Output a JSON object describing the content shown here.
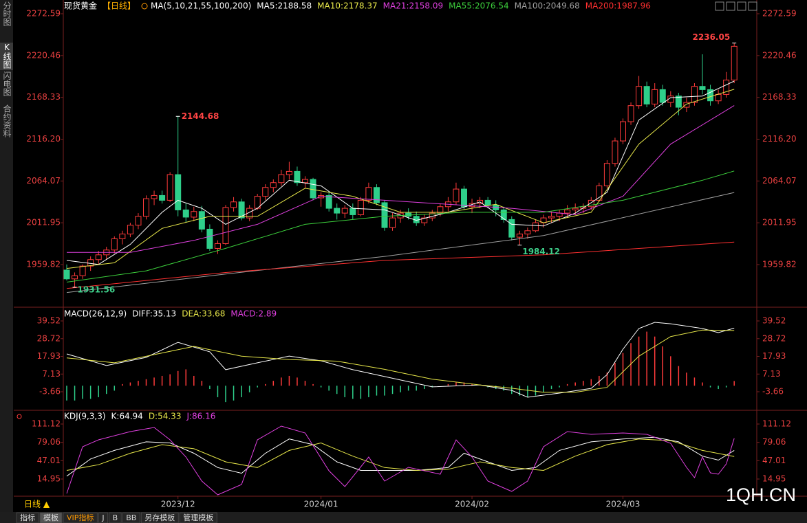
{
  "sidebar": [
    "分时图",
    "K线图",
    "闪电图",
    "合约资料"
  ],
  "chart_data": [
    {
      "type": "candlestick",
      "title": "现货黄金",
      "period": "【日线】",
      "indicator": "MA(5,10,21,55,100,200)",
      "categories": [
        null,
        null,
        null,
        null,
        null,
        null,
        null,
        null,
        null,
        null,
        null,
        null,
        null,
        null,
        "2023/12",
        null,
        null,
        null,
        null,
        null,
        null,
        null,
        null,
        null,
        null,
        null,
        null,
        null,
        null,
        null,
        null,
        null,
        "2024/01",
        null,
        null,
        null,
        null,
        null,
        null,
        null,
        null,
        null,
        null,
        null,
        null,
        null,
        null,
        null,
        null,
        null,
        null,
        "2024/02",
        null,
        null,
        null,
        null,
        null,
        null,
        null,
        null,
        null,
        null,
        null,
        null,
        null,
        null,
        null,
        null,
        null,
        null,
        "2024/03",
        null,
        null,
        null,
        null,
        null,
        null,
        null,
        null,
        null,
        null,
        null,
        null,
        null,
        null
      ],
      "candles": [
        [
          1953,
          1960,
          1940,
          1942
        ],
        [
          1942,
          1950,
          1931.56,
          1946
        ],
        [
          1946,
          1960,
          1942,
          1958
        ],
        [
          1958,
          1970,
          1952,
          1966
        ],
        [
          1966,
          1977,
          1960,
          1972
        ],
        [
          1972,
          1982,
          1966,
          1978
        ],
        [
          1978,
          1995,
          1974,
          1992
        ],
        [
          1992,
          2002,
          1985,
          1998
        ],
        [
          1998,
          2012,
          1994,
          2009
        ],
        [
          2009,
          2024,
          2004,
          2020
        ],
        [
          2020,
          2046,
          2016,
          2042
        ],
        [
          2042,
          2052,
          2034,
          2046
        ],
        [
          2046,
          2052,
          2036,
          2040
        ],
        [
          2040,
          2075,
          2038,
          2072
        ],
        [
          2072,
          2144.68,
          2020,
          2028
        ],
        [
          2028,
          2036,
          2012,
          2019
        ],
        [
          2019,
          2032,
          2014,
          2026
        ],
        [
          2026,
          2033,
          2000,
          2004
        ],
        [
          2004,
          2010,
          1977,
          1980
        ],
        [
          1980,
          1990,
          1973,
          1986
        ],
        [
          1986,
          2034,
          1984,
          2031
        ],
        [
          2031,
          2044,
          2026,
          2038
        ],
        [
          2038,
          2042,
          2015,
          2018
        ],
        [
          2018,
          2034,
          2014,
          2030
        ],
        [
          2030,
          2048,
          2028,
          2045
        ],
        [
          2045,
          2060,
          2040,
          2056
        ],
        [
          2056,
          2066,
          2050,
          2062
        ],
        [
          2062,
          2078,
          2058,
          2072
        ],
        [
          2072,
          2088,
          2066,
          2076
        ],
        [
          2076,
          2082,
          2058,
          2062
        ],
        [
          2062,
          2070,
          2055,
          2066
        ],
        [
          2066,
          2068,
          2040,
          2043
        ],
        [
          2043,
          2050,
          2032,
          2046
        ],
        [
          2046,
          2050,
          2026,
          2030
        ],
        [
          2030,
          2036,
          2016,
          2024
        ],
        [
          2024,
          2034,
          2018,
          2030
        ],
        [
          2030,
          2036,
          2016,
          2022
        ],
        [
          2022,
          2044,
          2020,
          2040
        ],
        [
          2040,
          2062,
          2036,
          2056
        ],
        [
          2056,
          2060,
          2034,
          2037
        ],
        [
          2037,
          2040,
          2002,
          2006
        ],
        [
          2006,
          2024,
          2002,
          2018
        ],
        [
          2018,
          2028,
          2012,
          2024
        ],
        [
          2024,
          2030,
          2016,
          2020
        ],
        [
          2020,
          2026,
          2008,
          2012
        ],
        [
          2012,
          2022,
          2008,
          2018
        ],
        [
          2018,
          2028,
          2014,
          2024
        ],
        [
          2024,
          2036,
          2020,
          2032
        ],
        [
          2032,
          2044,
          2026,
          2038
        ],
        [
          2038,
          2062,
          2034,
          2054
        ],
        [
          2054,
          2058,
          2028,
          2032
        ],
        [
          2032,
          2042,
          2024,
          2036
        ],
        [
          2036,
          2044,
          2030,
          2040
        ],
        [
          2040,
          2044,
          2030,
          2034
        ],
        [
          2034,
          2040,
          2020,
          2028
        ],
        [
          2028,
          2032,
          2012,
          2016
        ],
        [
          2016,
          2020,
          1990,
          1994
        ],
        [
          1994,
          2002,
          1984.12,
          1998
        ],
        [
          1998,
          2006,
          1992,
          2002
        ],
        [
          2002,
          2016,
          2000,
          2012
        ],
        [
          2012,
          2022,
          2006,
          2018
        ],
        [
          2018,
          2026,
          2012,
          2020
        ],
        [
          2020,
          2028,
          2014,
          2024
        ],
        [
          2024,
          2034,
          2018,
          2028
        ],
        [
          2028,
          2036,
          2022,
          2030
        ],
        [
          2030,
          2036,
          2024,
          2032
        ],
        [
          2032,
          2044,
          2028,
          2040
        ],
        [
          2040,
          2062,
          2038,
          2058
        ],
        [
          2058,
          2090,
          2055,
          2086
        ],
        [
          2086,
          2118,
          2082,
          2114
        ],
        [
          2114,
          2142,
          2110,
          2138
        ],
        [
          2138,
          2162,
          2134,
          2158
        ],
        [
          2158,
          2195,
          2154,
          2182
        ],
        [
          2182,
          2188,
          2156,
          2160
        ],
        [
          2160,
          2186,
          2156,
          2178
        ],
        [
          2178,
          2184,
          2158,
          2162
        ],
        [
          2162,
          2176,
          2156,
          2170
        ],
        [
          2170,
          2174,
          2146,
          2156
        ],
        [
          2156,
          2168,
          2150,
          2162
        ],
        [
          2162,
          2186,
          2158,
          2182
        ],
        [
          2182,
          2222,
          2172,
          2178
        ],
        [
          2178,
          2184,
          2158,
          2164
        ],
        [
          2164,
          2178,
          2160,
          2172
        ],
        [
          2172,
          2200,
          2168,
          2190
        ],
        [
          2190,
          2236.05,
          2186,
          2232
        ]
      ],
      "up_color": "#ff3b3b",
      "down_color": "#2ecf8a",
      "ylim": [
        1908.4,
        2282.87
      ],
      "yticks": [
        2272.59,
        2220.46,
        2168.33,
        {
          "value": 2116.2,
          "label": "2116.20"
        },
        2064.07,
        2011.95,
        1959.82
      ],
      "series": [
        {
          "name": "MA5:2188.58",
          "color": "#ffffff",
          "x": [
            0,
            4,
            8,
            12,
            14,
            17,
            20,
            24,
            28,
            32,
            36,
            40,
            44,
            48,
            52,
            56,
            60,
            64,
            68,
            72,
            76,
            80,
            84
          ],
          "values": [
            1965,
            1960,
            1985,
            2025,
            2040,
            2030,
            2010,
            2030,
            2065,
            2058,
            2030,
            2028,
            2015,
            2025,
            2038,
            2010,
            2008,
            2024,
            2050,
            2140,
            2168,
            2170,
            2188.58
          ]
        },
        {
          "name": "MA10:2178.37",
          "color": "#e8e84a",
          "x": [
            0,
            6,
            12,
            18,
            24,
            30,
            36,
            42,
            48,
            54,
            60,
            66,
            72,
            78,
            84
          ],
          "values": [
            1955,
            1962,
            2005,
            2020,
            2020,
            2055,
            2045,
            2025,
            2025,
            2035,
            2012,
            2025,
            2110,
            2160,
            2178.37
          ]
        },
        {
          "name": "MA21:2158.09",
          "color": "#e040e0",
          "x": [
            0,
            8,
            16,
            24,
            32,
            40,
            48,
            56,
            64,
            70,
            76,
            84
          ],
          "values": [
            1975,
            1975,
            1990,
            2010,
            2045,
            2040,
            2035,
            2030,
            2022,
            2045,
            2110,
            2158.09
          ]
        },
        {
          "name": "MA55:2076.54",
          "color": "#3ccf3c",
          "x": [
            0,
            10,
            20,
            30,
            40,
            50,
            60,
            70,
            80,
            84
          ],
          "values": [
            1938,
            1952,
            1980,
            2010,
            2020,
            2025,
            2025,
            2040,
            2065,
            2076.54
          ]
        },
        {
          "name": "MA100:2049.68",
          "color": "#a0a0a0",
          "x": [
            0,
            20,
            40,
            60,
            84
          ],
          "values": [
            1925,
            1948,
            1970,
            1996,
            2049.68
          ]
        },
        {
          "name": "MA200:1987.96",
          "color": "#ff3030",
          "x": [
            0,
            20,
            40,
            60,
            84
          ],
          "values": [
            1930,
            1950,
            1965,
            1972,
            1987.96
          ]
        }
      ]
    },
    {
      "type": "macd",
      "title": "MACD(26,12,9)",
      "ylim": [
        -14.14,
        46.65
      ],
      "yticks": [
        39.52,
        28.72,
        17.93,
        7.13,
        -3.66
      ],
      "series": [
        {
          "name": "DIFF:35.13",
          "color": "#ffffff",
          "x": [
            0,
            5,
            10,
            14,
            18,
            20,
            24,
            28,
            32,
            36,
            40,
            46,
            52,
            56,
            58,
            62,
            66,
            68,
            70,
            72,
            74,
            76,
            80,
            82,
            84
          ],
          "values": [
            19.4,
            12.3,
            17.3,
            26.5,
            20.7,
            9.8,
            14.0,
            18.1,
            15.2,
            9.8,
            5.6,
            -0.7,
            0.5,
            -2.8,
            -7.0,
            -4.5,
            -1.6,
            6.8,
            22.3,
            34.9,
            38.7,
            37.8,
            34.9,
            32.4,
            35.13
          ]
        },
        {
          "name": "DEA:33.68",
          "color": "#e8e84a",
          "x": [
            0,
            6,
            12,
            16,
            22,
            28,
            34,
            40,
            46,
            52,
            56,
            60,
            64,
            68,
            72,
            76,
            80,
            84
          ],
          "values": [
            17,
            14,
            20,
            24,
            18,
            16,
            15,
            10,
            4,
            0.5,
            -1.5,
            -4,
            -4,
            -1,
            18,
            30,
            34,
            33.68
          ]
        }
      ],
      "histogram": {
        "name": "MACD:2.89",
        "color": "#e040e0",
        "up_color": "#ff3b3b",
        "down_color": "#2ecf8a",
        "values": [
          -9,
          -9,
          -8,
          -8,
          -7,
          -5,
          -3,
          1,
          2,
          3,
          4,
          5,
          6,
          7,
          9,
          10,
          6,
          3,
          -2,
          -7,
          -10,
          -9,
          -7,
          -4,
          -1,
          1,
          3,
          5,
          6,
          5,
          3,
          1,
          -1,
          -3,
          -5,
          -7,
          -8,
          -8,
          -7,
          -6,
          -6,
          -5,
          -4,
          -3,
          -3,
          -2,
          -1,
          0,
          1,
          2,
          2,
          1,
          0,
          -1,
          -2,
          -3,
          -5,
          -6,
          -7,
          -6,
          -4,
          -2,
          -1,
          1,
          2,
          3,
          4,
          6,
          8,
          14,
          20,
          26,
          30,
          33,
          30,
          24,
          18,
          12,
          8,
          5,
          2,
          -1,
          -2,
          -1,
          2.89
        ]
      }
    },
    {
      "type": "kdj",
      "title": "KDJ(9,3,3)",
      "ylim": [
        -15.1,
        131.55
      ],
      "yticks": [
        111.12,
        79.06,
        47.01,
        14.95
      ],
      "series": [
        {
          "name": "K:64.94",
          "color": "#ffffff",
          "x": [
            0,
            3,
            6,
            10,
            13,
            16,
            19,
            22,
            25,
            28,
            31,
            34,
            37,
            40,
            44,
            48,
            50,
            53,
            56,
            59,
            62,
            66,
            70,
            74,
            77,
            80,
            82,
            84
          ],
          "values": [
            20,
            50,
            65,
            80,
            78,
            60,
            35,
            25,
            60,
            85,
            75,
            45,
            30,
            30,
            30,
            35,
            60,
            45,
            30,
            35,
            65,
            80,
            85,
            88,
            80,
            55,
            48,
            64.94
          ]
        },
        {
          "name": "D:54.33",
          "color": "#e8e84a",
          "x": [
            0,
            4,
            8,
            12,
            16,
            20,
            24,
            28,
            32,
            36,
            40,
            44,
            48,
            52,
            56,
            60,
            64,
            68,
            72,
            76,
            80,
            84
          ],
          "values": [
            30,
            40,
            60,
            75,
            68,
            45,
            35,
            65,
            78,
            55,
            35,
            30,
            32,
            45,
            35,
            30,
            55,
            75,
            85,
            82,
            65,
            54.33
          ]
        },
        {
          "name": "J:86.16",
          "color": "#e040e0",
          "x": [
            0,
            2,
            4,
            8,
            11,
            13,
            15,
            17,
            19,
            22,
            24,
            27,
            30,
            33,
            35,
            38,
            40,
            43,
            47,
            49,
            51,
            53,
            56,
            58,
            60,
            63,
            66,
            70,
            73,
            76,
            78,
            79,
            80,
            81,
            82,
            83,
            84
          ],
          "values": [
            -10.3,
            71.4,
            83.5,
            97.9,
            105.1,
            83.5,
            53.4,
            11.4,
            -12.7,
            5.3,
            83.5,
            107.5,
            95.5,
            29.4,
            1.7,
            53.4,
            11.4,
            35.4,
            23.4,
            83.5,
            53.4,
            11.4,
            -6.7,
            11.4,
            71.4,
            97.9,
            93.1,
            95.5,
            93.1,
            77.5,
            35.4,
            17.4,
            53.4,
            25.8,
            23.4,
            41.4,
            86.16
          ]
        }
      ]
    }
  ],
  "period_button": "日线 ▲",
  "watermark": "1QH.CN",
  "tabs": [
    "指标",
    "模板",
    "VIP指标",
    "J",
    "B",
    "BB",
    "另存模板",
    "管理模板"
  ]
}
